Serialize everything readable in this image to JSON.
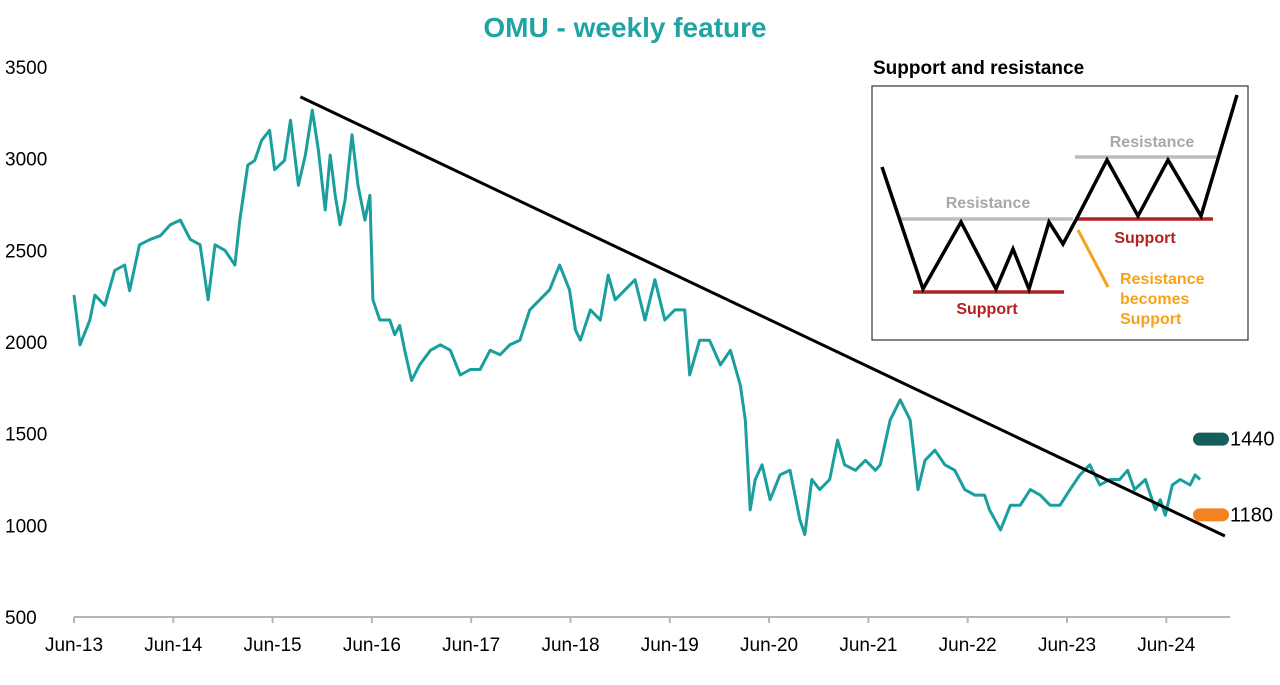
{
  "chart_data": {
    "type": "line",
    "title": "OMU - weekly feature",
    "xlabel": "",
    "ylabel": "",
    "x_unit": "years since Jun-13",
    "xlim": [
      0,
      11.7
    ],
    "ylim": [
      500,
      3500
    ],
    "yticks": [
      "3500",
      "3000",
      "2500",
      "2000",
      "1500",
      "1000",
      "500"
    ],
    "ytick_values": [
      3500,
      3000,
      2500,
      2000,
      1500,
      1000,
      500
    ],
    "xticks": [
      "Jun-13",
      "Jun-14",
      "Jun-15",
      "Jun-16",
      "Jun-17",
      "Jun-18",
      "Jun-19",
      "Jun-20",
      "Jun-21",
      "Jun-22",
      "Jun-23",
      "Jun-24"
    ],
    "grid": false,
    "series": [
      {
        "name": "OMU",
        "color": "#1a9e9e",
        "x": [
          0,
          0.06,
          0.16,
          0.21,
          0.31,
          0.41,
          0.51,
          0.56,
          0.66,
          0.77,
          0.87,
          0.97,
          1.07,
          1.17,
          1.27,
          1.35,
          1.42,
          1.52,
          1.62,
          1.67,
          1.75,
          1.82,
          1.89,
          1.97,
          2.02,
          2.12,
          2.18,
          2.26,
          2.33,
          2.4,
          2.46,
          2.53,
          2.58,
          2.63,
          2.68,
          2.73,
          2.8,
          2.86,
          2.93,
          2.98,
          3.01,
          3.08,
          3.18,
          3.23,
          3.28,
          3.33,
          3.4,
          3.48,
          3.59,
          3.69,
          3.79,
          3.89,
          3.99,
          4.09,
          4.19,
          4.29,
          4.39,
          4.49,
          4.59,
          4.69,
          4.79,
          4.89,
          4.99,
          5.05,
          5.1,
          5.2,
          5.3,
          5.38,
          5.45,
          5.55,
          5.65,
          5.75,
          5.85,
          5.95,
          6.05,
          6.15,
          6.2,
          6.3,
          6.4,
          6.51,
          6.61,
          6.71,
          6.76,
          6.81,
          6.86,
          6.93,
          7.01,
          7.11,
          7.21,
          7.31,
          7.36,
          7.43,
          7.51,
          7.61,
          7.69,
          7.76,
          7.87,
          7.97,
          8.07,
          8.12,
          8.22,
          8.32,
          8.42,
          8.5,
          8.57,
          8.67,
          8.77,
          8.87,
          8.97,
          9.07,
          9.17,
          9.22,
          9.33,
          9.43,
          9.53,
          9.63,
          9.73,
          9.83,
          9.93,
          10.03,
          10.13,
          10.23,
          10.33,
          10.43,
          10.53,
          10.61,
          10.68,
          10.79,
          10.89,
          10.94,
          10.99,
          11.06,
          11.14,
          11.24,
          11.29,
          11.34
        ],
        "values": [
          2256,
          1984,
          2120,
          2256,
          2200,
          2390,
          2420,
          2280,
          2530,
          2560,
          2580,
          2640,
          2665,
          2560,
          2530,
          2230,
          2530,
          2500,
          2420,
          2665,
          2965,
          2990,
          3100,
          3155,
          2940,
          2990,
          3210,
          2855,
          3020,
          3265,
          3050,
          2720,
          3020,
          2800,
          2640,
          2775,
          3130,
          2855,
          2665,
          2800,
          2230,
          2120,
          2120,
          2040,
          2090,
          1955,
          1790,
          1875,
          1955,
          1985,
          1955,
          1820,
          1850,
          1850,
          1955,
          1930,
          1985,
          2010,
          2175,
          2230,
          2285,
          2420,
          2285,
          2065,
          2010,
          2175,
          2120,
          2365,
          2230,
          2285,
          2340,
          2120,
          2340,
          2120,
          2175,
          2175,
          1820,
          2010,
          2010,
          1875,
          1955,
          1765,
          1575,
          1085,
          1250,
          1330,
          1140,
          1275,
          1300,
          1030,
          950,
          1250,
          1195,
          1250,
          1465,
          1330,
          1300,
          1355,
          1300,
          1330,
          1575,
          1685,
          1575,
          1195,
          1355,
          1410,
          1330,
          1300,
          1195,
          1165,
          1165,
          1085,
          975,
          1110,
          1110,
          1195,
          1165,
          1110,
          1110,
          1195,
          1275,
          1330,
          1220,
          1250,
          1250,
          1300,
          1195,
          1250,
          1085,
          1140,
          1055,
          1220,
          1250,
          1220,
          1275,
          1250
        ]
      },
      {
        "name": "Trendline",
        "color": "#000000",
        "x": [
          2.28,
          11.59
        ],
        "values": [
          3337,
          942
        ]
      }
    ],
    "annotations": [
      {
        "label": "1440",
        "value": 1440,
        "color": "#155e5c"
      },
      {
        "label": "1180",
        "value": 1180,
        "color": "#f58220"
      }
    ]
  },
  "inset": {
    "title": "Support and resistance",
    "resistance_label_1": "Resistance",
    "support_label_1": "Support",
    "resistance_label_2": "Resistance",
    "support_label_2": "Support",
    "flip_label": [
      "Resistance",
      "becomes",
      "Support"
    ]
  }
}
